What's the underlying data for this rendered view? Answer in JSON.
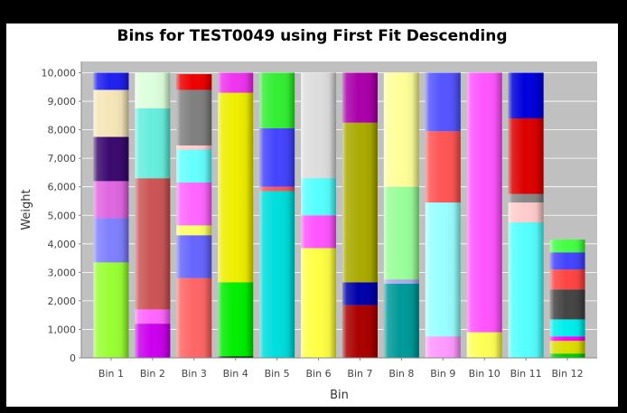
{
  "chart_data": {
    "type": "bar",
    "stacked": true,
    "title": "Bins for TEST0049 using First Fit Descending",
    "xlabel": "Bin",
    "ylabel": "Weight",
    "ylim": [
      0,
      10000
    ],
    "yticks": [
      0,
      1000,
      2000,
      3000,
      4000,
      5000,
      6000,
      7000,
      8000,
      9000,
      10000
    ],
    "ytick_labels": [
      "0",
      "1,000",
      "2,000",
      "3,000",
      "4,000",
      "5,000",
      "6,000",
      "7,000",
      "8,000",
      "9,000",
      "10,000"
    ],
    "grid": true,
    "background": "#c0c0c0",
    "categories": [
      "Bin 1",
      "Bin 2",
      "Bin 3",
      "Bin 4",
      "Bin 5",
      "Bin 6",
      "Bin 7",
      "Bin 8",
      "Bin 9",
      "Bin 10",
      "Bin 11",
      "Bin 12"
    ],
    "bins": [
      {
        "segments": [
          {
            "value": 3350,
            "color": "#99ff33"
          },
          {
            "value": 1550,
            "color": "#8080ff"
          },
          {
            "value": 1300,
            "color": "#e066e0"
          },
          {
            "value": 1550,
            "color": "#3a0a6e"
          },
          {
            "value": 1650,
            "color": "#f5e6b8"
          },
          {
            "value": 600,
            "color": "#2020ee"
          }
        ]
      },
      {
        "segments": [
          {
            "value": 1200,
            "color": "#cc00ee"
          },
          {
            "value": 500,
            "color": "#ff66ff"
          },
          {
            "value": 4600,
            "color": "#cc5555"
          },
          {
            "value": 2450,
            "color": "#66eedd"
          },
          {
            "value": 1250,
            "color": "#ddffdd"
          }
        ]
      },
      {
        "segments": [
          {
            "value": 2800,
            "color": "#ff6666"
          },
          {
            "value": 1500,
            "color": "#6666ff"
          },
          {
            "value": 350,
            "color": "#ffff66"
          },
          {
            "value": 1500,
            "color": "#ff66ff"
          },
          {
            "value": 1150,
            "color": "#66ffff"
          },
          {
            "value": 150,
            "color": "#ffcccc"
          },
          {
            "value": 1950,
            "color": "#808080"
          },
          {
            "value": 550,
            "color": "#ee0000"
          }
        ]
      },
      {
        "segments": [
          {
            "value": 50,
            "color": "#000000"
          },
          {
            "value": 2600,
            "color": "#00ee00"
          },
          {
            "value": 6650,
            "color": "#eeee00"
          },
          {
            "value": 700,
            "color": "#ee33ee"
          }
        ]
      },
      {
        "segments": [
          {
            "value": 5850,
            "color": "#00dddd"
          },
          {
            "value": 150,
            "color": "#ff5555"
          },
          {
            "value": 2050,
            "color": "#4444ff"
          },
          {
            "value": 1950,
            "color": "#33ee33"
          }
        ]
      },
      {
        "segments": [
          {
            "value": 3850,
            "color": "#ffff44"
          },
          {
            "value": 1150,
            "color": "#ff55ff"
          },
          {
            "value": 1300,
            "color": "#55ffff"
          },
          {
            "value": 3700,
            "color": "#dddddd"
          }
        ]
      },
      {
        "segments": [
          {
            "value": 1850,
            "color": "#aa0000"
          },
          {
            "value": 800,
            "color": "#0000aa"
          },
          {
            "value": 5600,
            "color": "#aaaa00"
          },
          {
            "value": 1750,
            "color": "#aa00aa"
          }
        ]
      },
      {
        "segments": [
          {
            "value": 2600,
            "color": "#009999"
          },
          {
            "value": 150,
            "color": "#aaaaee"
          },
          {
            "value": 3250,
            "color": "#99ff99"
          },
          {
            "value": 4000,
            "color": "#ffff99"
          }
        ]
      },
      {
        "segments": [
          {
            "value": 750,
            "color": "#ff99ff"
          },
          {
            "value": 4700,
            "color": "#99ffff"
          },
          {
            "value": 2500,
            "color": "#ff5555"
          },
          {
            "value": 2050,
            "color": "#5555ff"
          }
        ]
      },
      {
        "segments": [
          {
            "value": 900,
            "color": "#ffff55"
          },
          {
            "value": 9100,
            "color": "#ff55ff"
          }
        ]
      },
      {
        "segments": [
          {
            "value": 4750,
            "color": "#55ffff"
          },
          {
            "value": 700,
            "color": "#ffcccc"
          },
          {
            "value": 300,
            "color": "#888888"
          },
          {
            "value": 2650,
            "color": "#dd0000"
          },
          {
            "value": 1600,
            "color": "#0000dd"
          }
        ]
      },
      {
        "segments": [
          {
            "value": 150,
            "color": "#00cc00"
          },
          {
            "value": 450,
            "color": "#dddd00"
          },
          {
            "value": 150,
            "color": "#ff00ff"
          },
          {
            "value": 600,
            "color": "#00eeee"
          },
          {
            "value": 1050,
            "color": "#444444"
          },
          {
            "value": 700,
            "color": "#ff4444"
          },
          {
            "value": 600,
            "color": "#4444ff"
          },
          {
            "value": 450,
            "color": "#44ff44"
          }
        ]
      }
    ]
  }
}
